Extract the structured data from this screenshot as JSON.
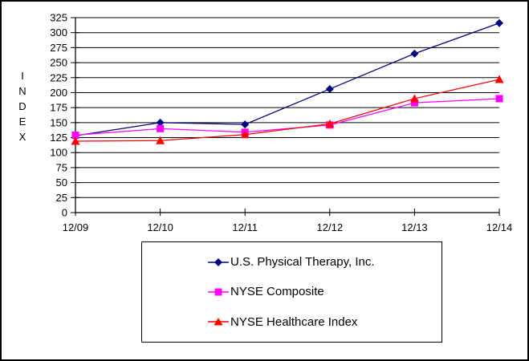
{
  "chart_data": {
    "type": "line",
    "title": "",
    "ylabel": "INDEX",
    "xlabel": "",
    "categories": [
      "12/09",
      "12/10",
      "12/11",
      "12/12",
      "12/13",
      "12/14"
    ],
    "series": [
      {
        "name": "U.S. Physical Therapy, Inc.",
        "marker": "diamond",
        "color": "#000080",
        "values": [
          128,
          150,
          147,
          206,
          265,
          316
        ]
      },
      {
        "name": "NYSE Composite",
        "marker": "square",
        "color": "#FF00FF",
        "values": [
          129,
          140,
          134,
          146,
          183,
          190
        ]
      },
      {
        "name": "NYSE Healthcare Index",
        "marker": "triangle",
        "color": "#FF0000",
        "values": [
          119,
          120,
          130,
          148,
          190,
          222
        ]
      }
    ],
    "ylim": [
      0,
      325
    ],
    "ytick_step": 25,
    "grid": true,
    "gridline_color": "#000000",
    "legend_position": "bottom-box",
    "axis_color": "#000000"
  }
}
